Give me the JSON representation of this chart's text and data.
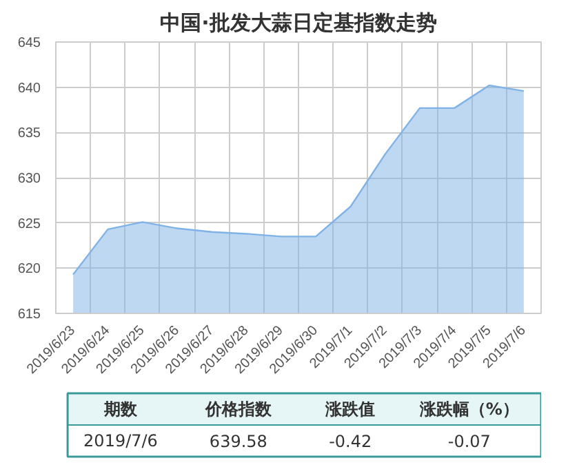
{
  "chart_data": {
    "type": "area",
    "title": "中国·批发大蒜日定基指数走势",
    "categories": [
      "2019/6/23",
      "2019/6/24",
      "2019/6/25",
      "2019/6/26",
      "2019/6/27",
      "2019/6/28",
      "2019/6/29",
      "2019/6/30",
      "2019/7/1",
      "2019/7/2",
      "2019/7/3",
      "2019/7/4",
      "2019/7/5",
      "2019/7/6"
    ],
    "series": [
      {
        "color": "#7fb2e6",
        "values": [
          619.3,
          624.3,
          625.1,
          624.4,
          624.0,
          623.8,
          623.5,
          623.5,
          626.8,
          632.6,
          637.7,
          637.7,
          640.2,
          639.58
        ]
      }
    ],
    "ylim": [
      615,
      645
    ],
    "yticks": [
      615,
      620,
      625,
      630,
      635,
      640,
      645
    ],
    "grid": true,
    "annotations": [
      "期数",
      "价格指数",
      "涨跌值",
      "涨跌幅（%）",
      "2019/7/6",
      "639.58",
      "-0.42",
      "-0.07"
    ]
  }
}
